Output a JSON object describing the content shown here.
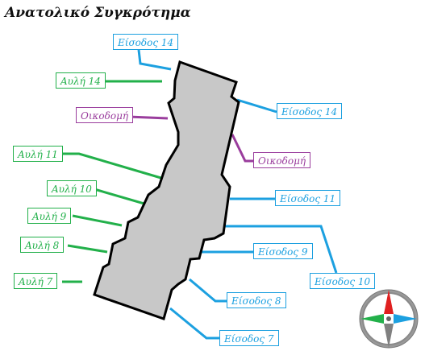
{
  "title": "Ανατολικό Συγκρότημα",
  "colors": {
    "entrance": "#1ca0e0",
    "courtyard": "#22b04a",
    "building": "#9a3d9d",
    "building_fill": "#c8c8c8",
    "outline": "#000000"
  },
  "labels": {
    "entrance_14_top": "Είσοδος 14",
    "entrance_14_right": "Είσοδος 14",
    "entrance_11": "Είσοδος 11",
    "entrance_10": "Είσοδος 10",
    "entrance_9": "Είσοδος 9",
    "entrance_8": "Είσοδος 8",
    "entrance_7": "Είσοδος 7",
    "courtyard_14": "Αυλή 14",
    "courtyard_11": "Αυλή 11",
    "courtyard_10": "Αυλή 10",
    "courtyard_9": "Αυλή 9",
    "courtyard_8": "Αυλή 8",
    "courtyard_7": "Αυλή 7",
    "building_left": "Οικοδομή",
    "building_right": "Οικοδομή"
  },
  "compass": {
    "icon": "compass-rose-icon",
    "colors": {
      "north": "#e02020",
      "east": "#1ca0e0",
      "south": "#808080",
      "west": "#22b04a"
    }
  }
}
